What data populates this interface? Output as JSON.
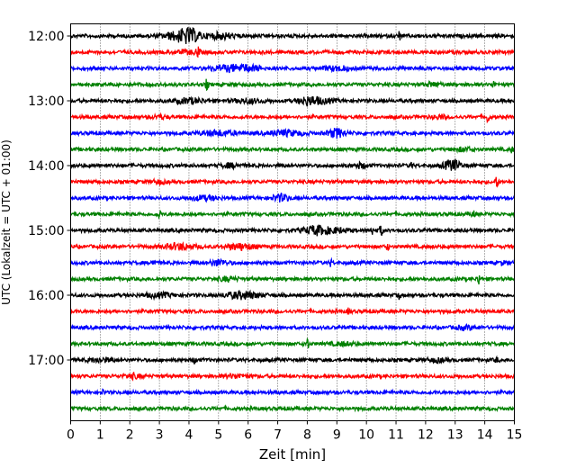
{
  "chart_data": {
    "type": "line",
    "title": "",
    "xlabel": "Zeit  [min]",
    "ylabel": "UTC (Lokalzeit = UTC + 01:00)",
    "xlim": [
      0,
      15
    ],
    "x_ticks": [
      0,
      1,
      2,
      3,
      4,
      5,
      6,
      7,
      8,
      9,
      10,
      11,
      12,
      13,
      14,
      15
    ],
    "x_grid": "dotted vertical gridlines at each minute",
    "y_ticks": [
      "12:00",
      "13:00",
      "14:00",
      "15:00",
      "16:00",
      "17:00"
    ],
    "traces_per_hour": 4,
    "trace_minutes": 15,
    "color_cycle": [
      "#000000",
      "#ff0000",
      "#0000ff",
      "#008000"
    ],
    "traces": [
      {
        "start": "12:00",
        "events": [
          [
            3.8,
            0.6,
            5.0
          ],
          [
            4.0,
            0.3,
            4.0
          ],
          [
            5.1,
            0.4,
            3.0
          ],
          [
            11.1,
            0.05,
            5.0
          ]
        ]
      },
      {
        "start": "12:15",
        "events": [
          [
            4.3,
            0.05,
            6.0
          ],
          [
            4.0,
            0.4,
            1.5
          ]
        ]
      },
      {
        "start": "12:30",
        "events": [
          [
            5.3,
            0.6,
            2.5
          ],
          [
            6.0,
            0.5,
            2.5
          ],
          [
            9.0,
            0.5,
            2.0
          ]
        ]
      },
      {
        "start": "12:45",
        "events": [
          [
            4.6,
            0.05,
            5.0
          ],
          [
            12.3,
            0.3,
            1.8
          ],
          [
            14.3,
            0.05,
            4.0
          ]
        ]
      },
      {
        "start": "13:00",
        "events": [
          [
            4.0,
            0.5,
            2.5
          ],
          [
            6.0,
            0.5,
            2.0
          ],
          [
            8.0,
            0.3,
            4.0
          ],
          [
            8.5,
            0.4,
            2.5
          ]
        ]
      },
      {
        "start": "13:15",
        "events": [
          [
            3.0,
            0.3,
            1.5
          ],
          [
            12.5,
            0.2,
            2.0
          ],
          [
            14.1,
            0.05,
            5.0
          ]
        ]
      },
      {
        "start": "13:30",
        "events": [
          [
            5.0,
            0.6,
            2.5
          ],
          [
            7.3,
            0.6,
            2.5
          ],
          [
            9.0,
            0.3,
            4.5
          ]
        ]
      },
      {
        "start": "13:45",
        "events": [
          [
            13.3,
            0.3,
            1.8
          ],
          [
            14.9,
            0.05,
            3.0
          ]
        ]
      },
      {
        "start": "14:00",
        "events": [
          [
            5.4,
            0.3,
            2.0
          ],
          [
            9.8,
            0.2,
            2.5
          ],
          [
            11.5,
            0.05,
            4.0
          ],
          [
            12.9,
            0.3,
            5.5
          ]
        ]
      },
      {
        "start": "14:15",
        "events": [
          [
            3.0,
            0.2,
            1.8
          ],
          [
            14.4,
            0.05,
            6.0
          ]
        ]
      },
      {
        "start": "14:30",
        "events": [
          [
            4.5,
            0.5,
            2.0
          ],
          [
            7.1,
            0.3,
            3.5
          ]
        ]
      },
      {
        "start": "14:45",
        "events": [
          [
            3.0,
            0.05,
            4.0
          ],
          [
            13.6,
            0.05,
            5.0
          ]
        ]
      },
      {
        "start": "15:00",
        "events": [
          [
            8.3,
            0.4,
            4.5
          ],
          [
            10.2,
            0.05,
            4.5
          ],
          [
            10.5,
            0.08,
            4.5
          ],
          [
            9.0,
            0.4,
            2.0
          ]
        ]
      },
      {
        "start": "15:15",
        "events": [
          [
            3.7,
            0.5,
            3.0
          ],
          [
            5.7,
            0.5,
            3.0
          ],
          [
            10.7,
            0.05,
            4.0
          ]
        ]
      },
      {
        "start": "15:30",
        "events": [
          [
            2.8,
            0.05,
            6.0
          ],
          [
            5.0,
            0.3,
            3.0
          ],
          [
            8.8,
            0.05,
            3.5
          ],
          [
            14.6,
            0.05,
            3.0
          ]
        ]
      },
      {
        "start": "15:45",
        "events": [
          [
            5.3,
            0.3,
            2.0
          ],
          [
            13.8,
            0.05,
            6.0
          ]
        ]
      },
      {
        "start": "16:00",
        "events": [
          [
            3.0,
            0.5,
            2.0
          ],
          [
            5.8,
            0.6,
            3.5
          ],
          [
            11.1,
            0.05,
            3.5
          ]
        ]
      },
      {
        "start": "16:15",
        "events": [
          [
            9.4,
            0.05,
            3.0
          ]
        ]
      },
      {
        "start": "16:30",
        "events": [
          [
            13.4,
            0.4,
            1.5
          ]
        ]
      },
      {
        "start": "16:45",
        "events": [
          [
            8.0,
            0.05,
            6.0
          ],
          [
            9.2,
            0.4,
            1.5
          ]
        ]
      },
      {
        "start": "17:00",
        "events": [
          [
            1.0,
            0.4,
            2.0
          ],
          [
            4.2,
            0.05,
            3.5
          ],
          [
            12.4,
            0.3,
            1.8
          ],
          [
            14.4,
            0.05,
            2.5
          ]
        ]
      },
      {
        "start": "17:15",
        "events": [
          [
            2.1,
            0.3,
            2.0
          ],
          [
            5.6,
            0.4,
            1.5
          ]
        ]
      },
      {
        "start": "17:30",
        "events": [
          [
            1.1,
            0.05,
            2.0
          ]
        ]
      },
      {
        "start": "17:45",
        "events": []
      }
    ]
  }
}
